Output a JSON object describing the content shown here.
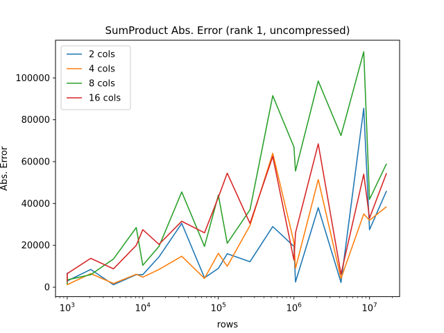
{
  "chart_data": {
    "type": "line",
    "title": "SumProduct Abs. Error (rank 1, uncompressed)",
    "xlabel": "rows",
    "ylabel": "Abs. Error",
    "xscale": "log",
    "xlim": [
      700,
      25000000
    ],
    "ylim": [
      -4500,
      118000
    ],
    "x_ticks": [
      {
        "value": 1000,
        "base": "10",
        "exp": "3"
      },
      {
        "value": 10000,
        "base": "10",
        "exp": "4"
      },
      {
        "value": 100000,
        "base": "10",
        "exp": "5"
      },
      {
        "value": 1000000,
        "base": "10",
        "exp": "6"
      },
      {
        "value": 10000000,
        "base": "10",
        "exp": "7"
      }
    ],
    "y_ticks": [
      {
        "value": 0,
        "label": "0"
      },
      {
        "value": 20000,
        "label": "20000"
      },
      {
        "value": 40000,
        "label": "40000"
      },
      {
        "value": 60000,
        "label": "60000"
      },
      {
        "value": 80000,
        "label": "80000"
      },
      {
        "value": 100000,
        "label": "100000"
      }
    ],
    "legend_position": "upper-left",
    "series": [
      {
        "name": "2 cols",
        "color": "#1f77b4",
        "x": [
          1000,
          1000,
          2048,
          4096,
          8192,
          10000,
          16384,
          32768,
          65536,
          100000,
          131072,
          262144,
          524288,
          1000000,
          1048576,
          2097152,
          4194304,
          8388608,
          10000000,
          16777216
        ],
        "y": [
          7000,
          3000,
          8500,
          1200,
          6000,
          6000,
          14500,
          30500,
          4500,
          9000,
          16000,
          12200,
          29000,
          19500,
          2500,
          38000,
          2300,
          85500,
          27500,
          46000
        ]
      },
      {
        "name": "4 cols",
        "color": "#ff7f0e",
        "x": [
          1000,
          1000,
          2048,
          4096,
          8192,
          10000,
          16384,
          32768,
          65536,
          100000,
          131072,
          262144,
          524288,
          1000000,
          1048576,
          2097152,
          4194304,
          8388608,
          10000000,
          16777216
        ],
        "y": [
          2500,
          1200,
          6500,
          1800,
          6200,
          4800,
          8500,
          14800,
          4200,
          16200,
          10000,
          29500,
          64000,
          21500,
          9000,
          51500,
          4200,
          35000,
          32000,
          38500
        ]
      },
      {
        "name": "8 cols",
        "color": "#2ca02c",
        "x": [
          1000,
          1000,
          2048,
          4096,
          8192,
          10000,
          16384,
          32768,
          65536,
          100000,
          131072,
          262144,
          524288,
          1000000,
          1048576,
          2097152,
          4194304,
          8388608,
          10000000,
          16777216
        ],
        "y": [
          1500,
          3500,
          6000,
          13500,
          28500,
          10500,
          19500,
          45500,
          19500,
          44000,
          21000,
          37000,
          91500,
          67000,
          55500,
          98500,
          72500,
          112500,
          42000,
          59000
        ]
      },
      {
        "name": "16 cols",
        "color": "#d62728",
        "x": [
          1000,
          1000,
          2048,
          4096,
          8192,
          10000,
          16384,
          32768,
          65536,
          100000,
          131072,
          262144,
          524288,
          1000000,
          1048576,
          2097152,
          4194304,
          8388608,
          10000000,
          16777216
        ],
        "y": [
          2500,
          6500,
          13800,
          8800,
          20000,
          27500,
          20500,
          31500,
          26000,
          43000,
          54500,
          30500,
          62500,
          13000,
          26000,
          68500,
          6200,
          54000,
          33000,
          54500
        ]
      }
    ]
  }
}
